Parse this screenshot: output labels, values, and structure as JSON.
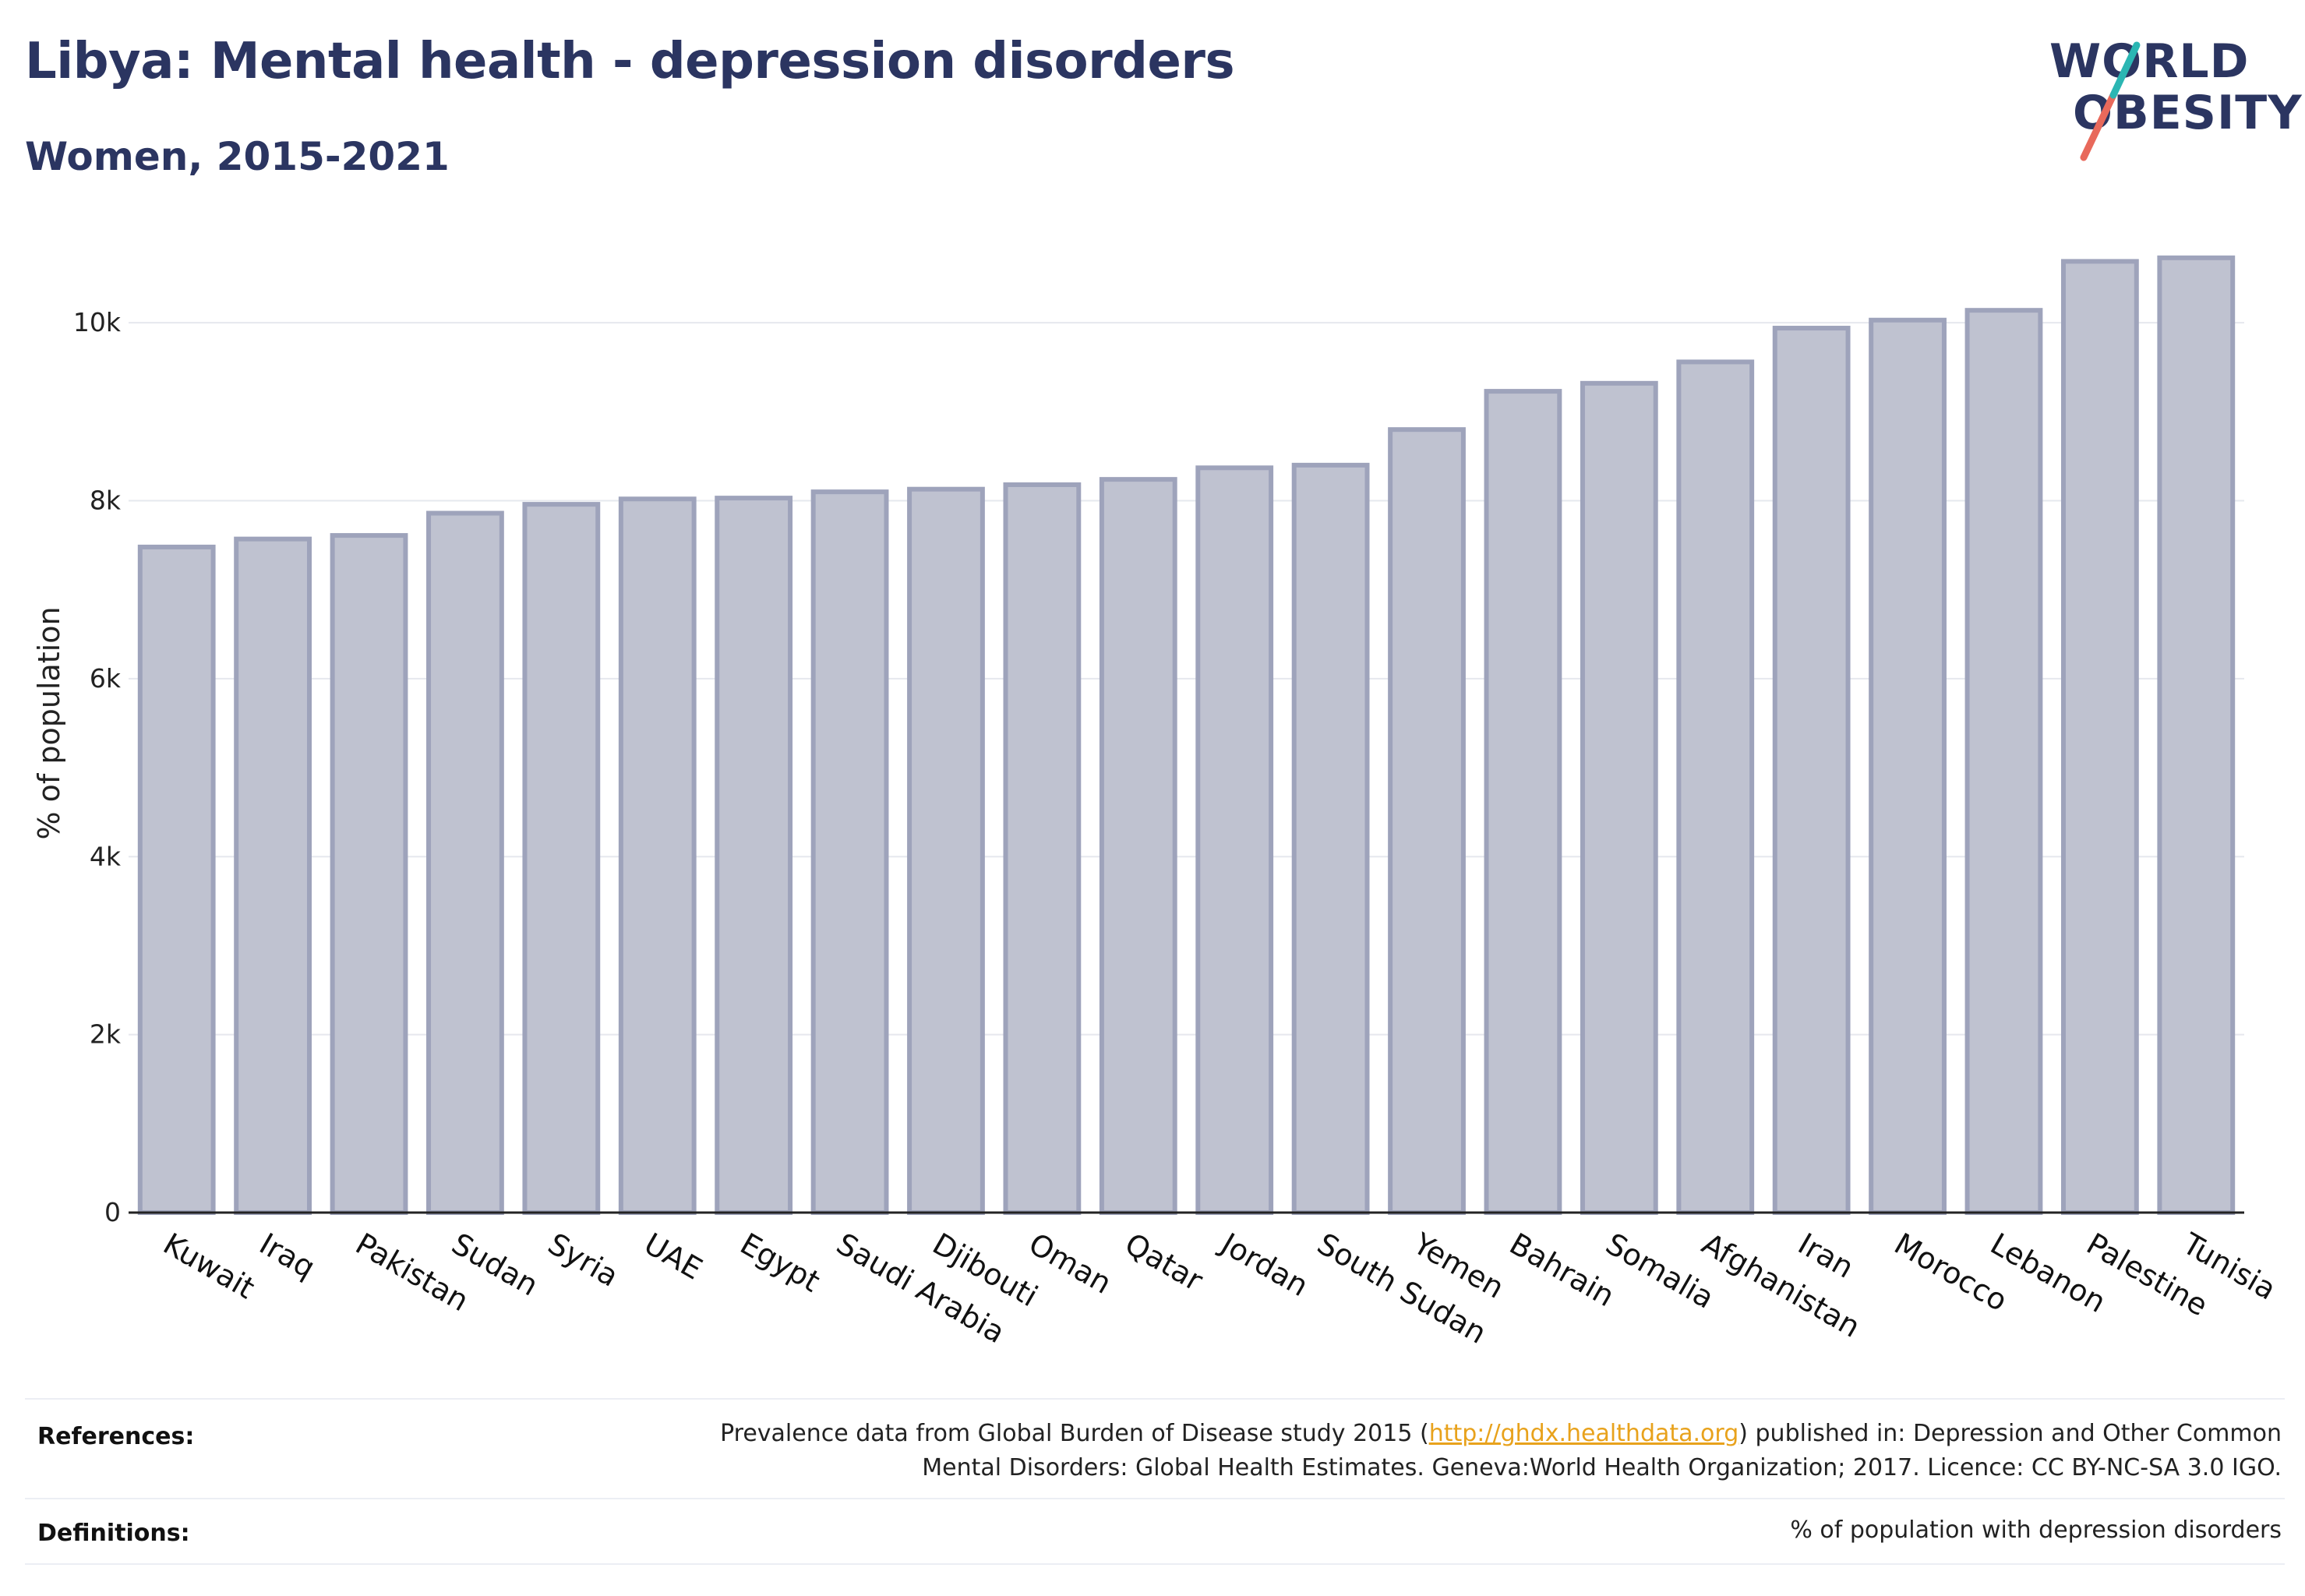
{
  "title": "Libya: Mental health - depression disorders",
  "subtitle": "Women, 2015-2021",
  "logo": {
    "line1": "WORLD",
    "line2": "OBESITY"
  },
  "colors": {
    "title": "#2b3561",
    "bar_fill": "#bfc2d0",
    "bar_stroke": "#9ea3bb",
    "link": "#e8a21c",
    "logo_accent_teal": "#2bb6b3",
    "logo_accent_red": "#e8695b"
  },
  "chart_data": {
    "type": "bar",
    "ylabel": "% of population",
    "xlabel": "",
    "ylim": [
      0,
      11000
    ],
    "yticks": [
      0,
      2000,
      4000,
      6000,
      8000,
      10000
    ],
    "ytick_labels": [
      "0",
      "2k",
      "4k",
      "6k",
      "8k",
      "10k"
    ],
    "grid": true,
    "categories": [
      "Kuwait",
      "Iraq",
      "Pakistan",
      "Sudan",
      "Syria",
      "UAE",
      "Egypt",
      "Saudi Arabia",
      "Djibouti",
      "Oman",
      "Qatar",
      "Jordan",
      "South Sudan",
      "Yemen",
      "Bahrain",
      "Somalia",
      "Afghanistan",
      "Iran",
      "Morocco",
      "Lebanon",
      "Palestine",
      "Tunisia"
    ],
    "values": [
      7480,
      7570,
      7610,
      7860,
      7960,
      8020,
      8030,
      8100,
      8130,
      8180,
      8240,
      8370,
      8400,
      8800,
      9230,
      9320,
      9560,
      9940,
      10030,
      10140,
      10690,
      10730
    ]
  },
  "footer": {
    "references_label": "References:",
    "references_text_1": "Prevalence data from Global Burden of Disease study 2015 (",
    "references_link": "http://ghdx.healthdata.org",
    "references_text_2": ") published in: Depression and Other Common Mental Disorders: Global Health Estimates. Geneva:World Health Organization; 2017. Licence: CC BY-NC-SA 3.0 IGO.",
    "definitions_label": "Definitions:",
    "definitions_text": "% of population with depression disorders"
  }
}
